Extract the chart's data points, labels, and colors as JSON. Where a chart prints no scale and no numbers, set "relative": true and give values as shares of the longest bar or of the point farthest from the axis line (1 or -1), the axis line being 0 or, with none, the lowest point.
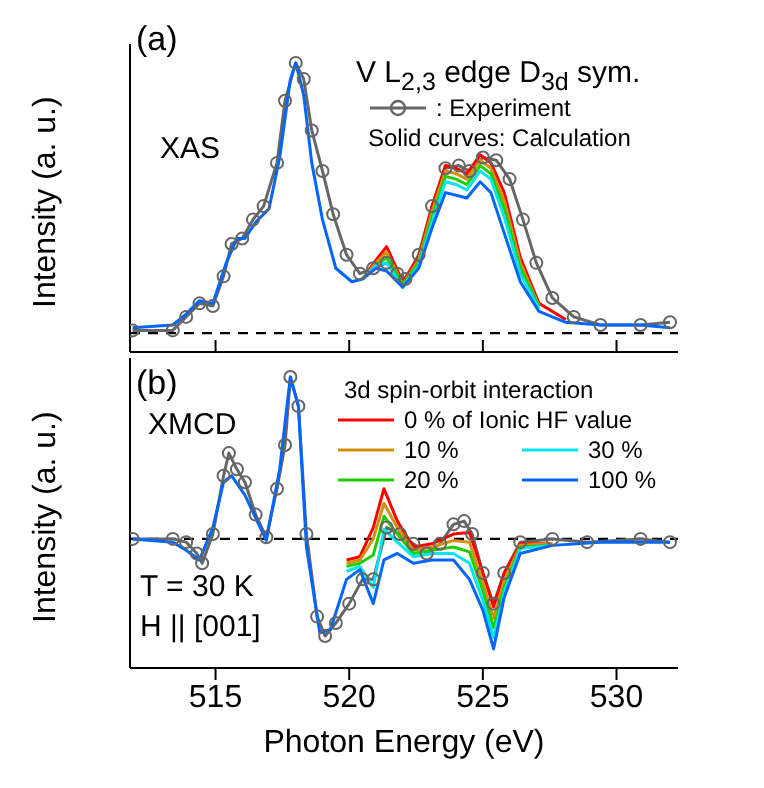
{
  "chart_data": [
    {
      "type": "line",
      "relative": true,
      "ylabel": "Intensity (a. u.)",
      "xlim": [
        511.8,
        532.3
      ],
      "xticks": [
        515,
        520,
        525,
        530
      ],
      "tick_labels": false,
      "grid": false,
      "legend": "top right",
      "marker": "none",
      "line_style": "solid",
      "annotations": [
        "(a)",
        "V L$_{2,3}$ edge D$_{3d}$ sym.",
        "XAS",
        "Solid curves: Calculation"
      ],
      "ref_lines": [
        {
          "axis": "y",
          "value": 0,
          "color": "#000000",
          "line_style": "dashed"
        }
      ],
      "series": [
        {
          "name": ": Experiment",
          "color": "#666666",
          "marker": "circle",
          "x": [
            511.9,
            513.4,
            513.9,
            514.4,
            514.9,
            515.3,
            515.6,
            516.0,
            516.4,
            516.8,
            517.3,
            517.6,
            518.0,
            518.3,
            518.6,
            519.0,
            519.4,
            519.9,
            520.4,
            520.9,
            521.4,
            521.8,
            522.1,
            522.6,
            523.1,
            523.6,
            524.1,
            524.5,
            525.0,
            525.5,
            526.0,
            526.5,
            527.0,
            527.6,
            528.4,
            529.4,
            530.9,
            532.0
          ],
          "values": [
            0.01,
            0.01,
            0.06,
            0.11,
            0.1,
            0.21,
            0.33,
            0.35,
            0.42,
            0.47,
            0.63,
            0.86,
            1.0,
            0.94,
            0.75,
            0.6,
            0.44,
            0.29,
            0.22,
            0.24,
            0.26,
            0.22,
            0.2,
            0.29,
            0.47,
            0.61,
            0.62,
            0.6,
            0.65,
            0.64,
            0.57,
            0.42,
            0.26,
            0.13,
            0.06,
            0.03,
            0.03,
            0.04
          ]
        },
        {
          "color": "#ff0000",
          "x": [
            520.5,
            521.0,
            521.4,
            522.0,
            522.6,
            523.1,
            523.6,
            524.0,
            524.4,
            524.9,
            525.3,
            525.8,
            526.4,
            527.1,
            528.1
          ],
          "values": [
            0.2,
            0.27,
            0.32,
            0.19,
            0.28,
            0.47,
            0.62,
            0.61,
            0.59,
            0.66,
            0.63,
            0.52,
            0.28,
            0.11,
            0.05
          ]
        },
        {
          "color": "#d4900a",
          "x": [
            520.5,
            521.0,
            521.4,
            522.0,
            522.6,
            523.1,
            523.6,
            524.0,
            524.4,
            524.9,
            525.3,
            525.8,
            526.4,
            527.1
          ],
          "values": [
            0.2,
            0.26,
            0.3,
            0.18,
            0.27,
            0.45,
            0.6,
            0.59,
            0.57,
            0.64,
            0.61,
            0.49,
            0.26,
            0.1
          ]
        },
        {
          "color": "#22cc00",
          "x": [
            520.5,
            521.0,
            521.4,
            522.0,
            522.6,
            523.1,
            523.6,
            524.0,
            524.4,
            524.9,
            525.3,
            525.8,
            526.4,
            527.1
          ],
          "values": [
            0.2,
            0.25,
            0.28,
            0.18,
            0.26,
            0.43,
            0.58,
            0.57,
            0.55,
            0.62,
            0.59,
            0.46,
            0.24,
            0.1
          ]
        },
        {
          "color": "#00e5ee",
          "x": [
            520.5,
            521.0,
            521.4,
            522.0,
            522.6,
            523.1,
            523.6,
            524.0,
            524.4,
            524.9,
            525.3,
            525.8,
            526.4,
            527.1
          ],
          "values": [
            0.2,
            0.25,
            0.26,
            0.17,
            0.25,
            0.41,
            0.56,
            0.55,
            0.53,
            0.6,
            0.57,
            0.43,
            0.22,
            0.09
          ]
        },
        {
          "color": "#0066ff",
          "x": [
            511.9,
            513.4,
            513.9,
            514.4,
            514.9,
            515.4,
            515.8,
            516.1,
            516.5,
            517.0,
            517.4,
            517.8,
            518.0,
            518.3,
            518.6,
            519.0,
            519.5,
            520.1,
            520.5,
            521.0,
            521.4,
            522.0,
            522.6,
            523.1,
            523.6,
            524.0,
            524.4,
            524.9,
            525.3,
            525.8,
            526.4,
            527.1,
            528.1,
            529.4,
            530.9,
            532.0
          ],
          "values": [
            0.02,
            0.03,
            0.07,
            0.12,
            0.11,
            0.26,
            0.35,
            0.35,
            0.41,
            0.46,
            0.65,
            0.94,
            1.0,
            0.88,
            0.63,
            0.42,
            0.24,
            0.19,
            0.2,
            0.24,
            0.23,
            0.17,
            0.24,
            0.39,
            0.52,
            0.51,
            0.5,
            0.56,
            0.52,
            0.37,
            0.19,
            0.08,
            0.04,
            0.03,
            0.03,
            0.02
          ]
        }
      ]
    },
    {
      "type": "line",
      "relative": true,
      "xlabel": "Photon Energy (eV)",
      "ylabel": "Intensity (a. u.)",
      "xlim": [
        511.8,
        532.3
      ],
      "xticks": [
        515,
        520,
        525,
        530
      ],
      "tick_labels": "x",
      "grid": false,
      "legend": "top right",
      "legend_title": "3d spin-orbit interaction",
      "marker": "none",
      "line_style": "solid",
      "annotations": [
        "(b)",
        "XMCD",
        "T = 30 K",
        "H || [001]"
      ],
      "ref_lines": [
        {
          "axis": "y",
          "value": 0,
          "color": "#000000",
          "line_style": "dashed"
        }
      ],
      "series": [
        {
          "color": "#666666",
          "marker": "circle",
          "x": [
            511.9,
            513.4,
            513.9,
            514.3,
            514.5,
            514.9,
            515.3,
            515.5,
            515.8,
            516.1,
            516.5,
            516.9,
            517.3,
            517.6,
            517.8,
            518.1,
            518.4,
            518.8,
            519.1,
            519.5,
            520.0,
            520.5,
            520.9,
            521.4,
            521.9,
            522.4,
            522.9,
            523.4,
            523.9,
            524.3,
            524.6,
            525.0,
            525.4,
            525.8,
            526.4,
            527.6,
            528.9,
            530.9,
            532.0
          ],
          "values": [
            0,
            0,
            -0.02,
            -0.09,
            -0.15,
            0.03,
            0.39,
            0.53,
            0.43,
            0.35,
            0.15,
            0.01,
            0.31,
            0.58,
            1.0,
            0.82,
            0.03,
            -0.48,
            -0.6,
            -0.52,
            -0.4,
            -0.25,
            -0.25,
            0.07,
            0.03,
            -0.03,
            -0.09,
            -0.03,
            0.09,
            0.11,
            0.03,
            -0.21,
            -0.4,
            -0.21,
            -0.02,
            0,
            -0.02,
            0,
            -0.02
          ]
        },
        {
          "name": "0 % of Ionic HF value",
          "color": "#ff0000",
          "x": [
            519.9,
            520.4,
            520.9,
            521.3,
            521.8,
            522.4,
            523.1,
            523.9,
            524.5,
            525.0,
            525.4,
            525.8,
            526.4,
            527.6
          ],
          "values": [
            -0.13,
            -0.11,
            0.07,
            0.31,
            0.11,
            -0.05,
            -0.03,
            0.03,
            0.04,
            -0.21,
            -0.42,
            -0.21,
            -0.03,
            -0.03
          ]
        },
        {
          "name": "10 %",
          "color": "#d4900a",
          "x": [
            519.9,
            520.4,
            520.9,
            521.3,
            521.8,
            522.4,
            523.1,
            523.9,
            524.5,
            525.0,
            525.4,
            525.8,
            526.4,
            527.6
          ],
          "values": [
            -0.15,
            -0.13,
            0.0,
            0.22,
            0.07,
            -0.07,
            -0.05,
            -0.01,
            -0.02,
            -0.27,
            -0.49,
            -0.26,
            -0.04,
            -0.03
          ]
        },
        {
          "name": "20 %",
          "color": "#22cc00",
          "x": [
            519.9,
            520.4,
            520.9,
            521.3,
            521.8,
            522.4,
            523.1,
            523.9,
            524.5,
            525.0,
            525.4,
            525.8,
            526.4,
            527.6
          ],
          "values": [
            -0.17,
            -0.15,
            -0.1,
            0.14,
            0.03,
            -0.09,
            -0.07,
            -0.05,
            -0.08,
            -0.32,
            -0.55,
            -0.3,
            -0.05,
            -0.04
          ]
        },
        {
          "name": "30 %",
          "color": "#00e5ee",
          "x": [
            519.9,
            520.4,
            520.9,
            521.3,
            521.8,
            522.4,
            523.1,
            523.9,
            524.5,
            525.0,
            525.4,
            525.8,
            526.4,
            527.6
          ],
          "values": [
            -0.2,
            -0.17,
            -0.3,
            0.06,
            -0.02,
            -0.11,
            -0.09,
            -0.09,
            -0.15,
            -0.38,
            -0.61,
            -0.33,
            -0.06,
            -0.04
          ]
        },
        {
          "name": "100 %",
          "color": "#0066ff",
          "x": [
            511.9,
            513.4,
            513.9,
            514.4,
            514.9,
            515.3,
            515.6,
            516.1,
            516.5,
            516.9,
            517.4,
            517.7,
            517.8,
            518.1,
            518.4,
            518.9,
            519.3,
            519.9,
            520.4,
            520.9,
            521.3,
            521.8,
            522.4,
            523.1,
            523.9,
            524.5,
            525.0,
            525.4,
            525.8,
            526.4,
            527.6,
            529.4,
            532.0
          ],
          "values": [
            0,
            -0.02,
            -0.07,
            -0.13,
            0.07,
            0.35,
            0.39,
            0.27,
            0.13,
            -0.01,
            0.43,
            0.86,
            1.0,
            0.82,
            -0.05,
            -0.58,
            -0.56,
            -0.25,
            -0.19,
            -0.4,
            -0.13,
            -0.09,
            -0.15,
            -0.13,
            -0.13,
            -0.25,
            -0.44,
            -0.68,
            -0.36,
            -0.09,
            -0.04,
            -0.02,
            -0.02
          ]
        }
      ]
    }
  ]
}
